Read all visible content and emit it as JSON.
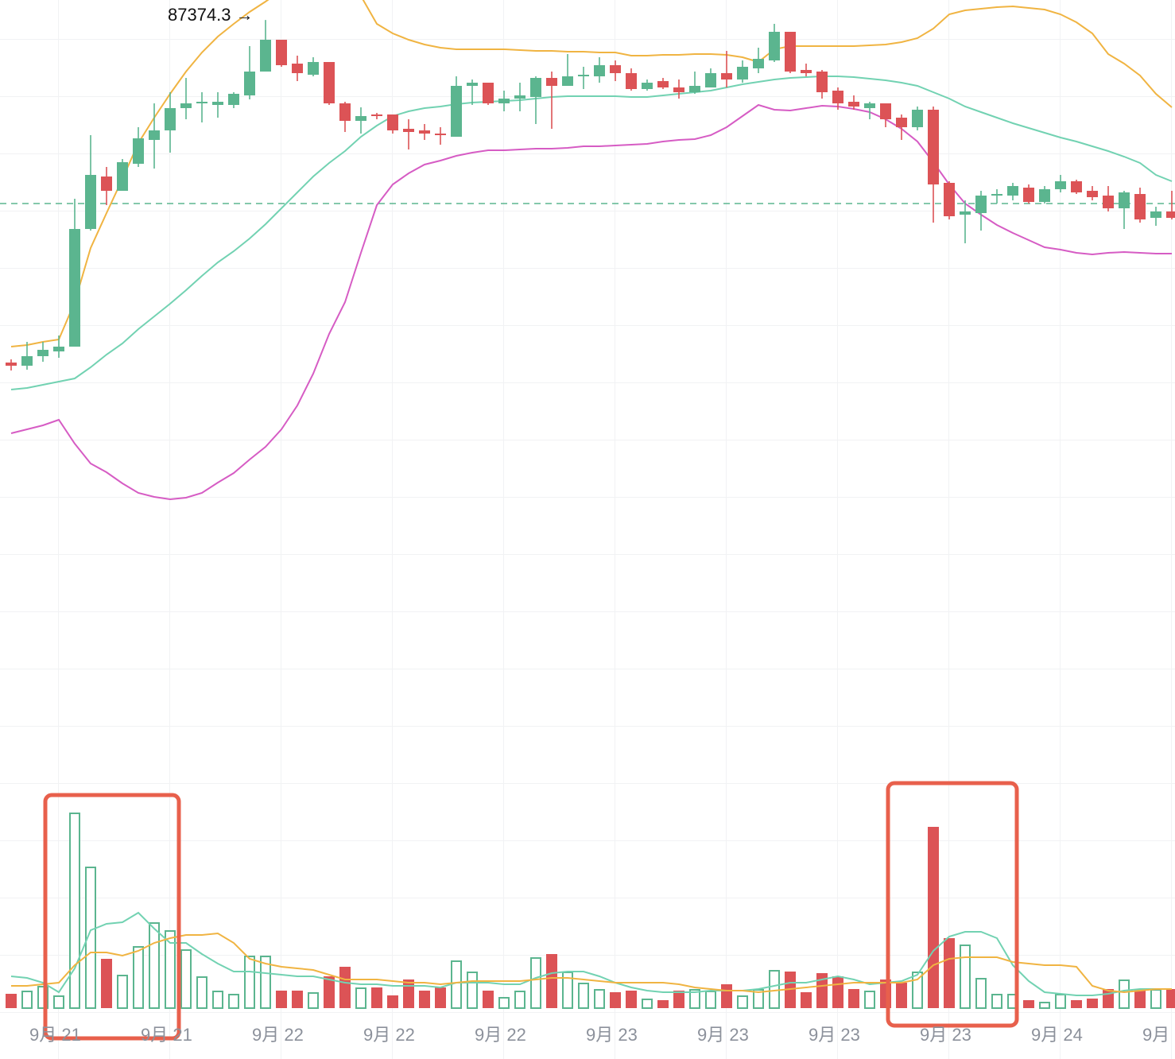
{
  "chart_data": {
    "type": "candlestick",
    "annotation": "87374.3 →",
    "categories": [
      null,
      null,
      null,
      "9月 21",
      null,
      null,
      null,
      null,
      null,
      null,
      "9月 21",
      null,
      null,
      null,
      null,
      null,
      null,
      "9月 22",
      null,
      null,
      null,
      null,
      null,
      null,
      "9月 22",
      null,
      null,
      null,
      null,
      null,
      null,
      "9月 22",
      null,
      null,
      null,
      null,
      null,
      null,
      "9月 23",
      null,
      null,
      null,
      null,
      null,
      null,
      "9月 23",
      null,
      null,
      null,
      null,
      null,
      null,
      "9月 23",
      null,
      null,
      null,
      null,
      null,
      null,
      "9月 23",
      null,
      null,
      null,
      null,
      null,
      null,
      "9月 24",
      null,
      null,
      null,
      null,
      null,
      null,
      "9月"
    ],
    "open": [
      85220,
      85200,
      85260,
      85290,
      85320,
      86060,
      86390,
      86300,
      86470,
      86620,
      86680,
      86820,
      86850,
      86840,
      86840,
      86900,
      87050,
      87250,
      87100,
      87030,
      87110,
      86850,
      86740,
      86780,
      86780,
      86690,
      86680,
      86660,
      86640,
      86960,
      86980,
      86850,
      86880,
      86890,
      87010,
      86960,
      87020,
      87020,
      87090,
      87040,
      86940,
      86990,
      86950,
      86920,
      86950,
      87040,
      87000,
      87070,
      87120,
      87300,
      87060,
      87050,
      86930,
      86860,
      86820,
      86850,
      86760,
      86700,
      86810,
      86350,
      86150,
      86160,
      86270,
      86270,
      86320,
      86230,
      86310,
      86360,
      86300,
      86270,
      86190,
      86280,
      86130,
      86170
    ],
    "high": [
      85240,
      85350,
      85350,
      85390,
      86250,
      86650,
      86450,
      86500,
      86700,
      86850,
      86920,
      87010,
      86920,
      86920,
      86920,
      87210,
      87374.3,
      87250,
      87150,
      87140,
      87110,
      86860,
      86825,
      86790,
      86780,
      86750,
      86720,
      86700,
      87020,
      87000,
      86980,
      86930,
      86980,
      87020,
      87050,
      87160,
      87080,
      87140,
      87120,
      87070,
      87000,
      87010,
      87000,
      87050,
      87070,
      87180,
      87120,
      87200,
      87350,
      87300,
      87100,
      87060,
      86950,
      86900,
      86860,
      86850,
      86780,
      86830,
      86830,
      86360,
      86240,
      86300,
      86310,
      86350,
      86340,
      86330,
      86400,
      86370,
      86330,
      86330,
      86300,
      86320,
      86200,
      86300
    ],
    "low": [
      85170,
      85175,
      85225,
      85250,
      85320,
      86050,
      86210,
      86300,
      86450,
      86440,
      86540,
      86750,
      86730,
      86760,
      86820,
      86875,
      87050,
      87080,
      86990,
      87020,
      86840,
      86670,
      86660,
      86750,
      86660,
      86560,
      86620,
      86590,
      86640,
      86840,
      86840,
      86800,
      86800,
      86720,
      86690,
      86960,
      86940,
      86980,
      86990,
      86930,
      86930,
      86940,
      86880,
      86910,
      86950,
      86950,
      86980,
      87040,
      87110,
      87040,
      87020,
      86880,
      86810,
      86810,
      86750,
      86700,
      86620,
      86680,
      86100,
      86120,
      85970,
      86050,
      86220,
      86240,
      86220,
      86220,
      86290,
      86280,
      86240,
      86170,
      86060,
      86100,
      86080,
      86120
    ],
    "close": [
      85200,
      85260,
      85300,
      85320,
      86060,
      86400,
      86300,
      86480,
      86630,
      86680,
      86820,
      86850,
      86860,
      86860,
      86910,
      87050,
      87250,
      87090,
      87040,
      87110,
      86850,
      86740,
      86770,
      86770,
      86680,
      86670,
      86660,
      86650,
      86960,
      86980,
      86850,
      86880,
      86900,
      87010,
      86960,
      87020,
      87030,
      87090,
      87040,
      86940,
      86980,
      86950,
      86920,
      86960,
      87040,
      87000,
      87080,
      87130,
      87300,
      87050,
      87040,
      86920,
      86850,
      86830,
      86850,
      86750,
      86700,
      86810,
      86340,
      86140,
      86170,
      86270,
      86280,
      86330,
      86230,
      86310,
      86360,
      86290,
      86260,
      86190,
      86290,
      86120,
      86170,
      86130
    ],
    "up_color": "#5bb58f",
    "down_color": "#dc5356",
    "ylim": [
      82500,
      87500
    ],
    "price_line": 86220,
    "overlays": [
      {
        "color": "#f0b442",
        "values": [
          85320,
          85330,
          85350,
          85365,
          85600,
          85940,
          86160,
          86375,
          86600,
          86760,
          86910,
          87050,
          87170,
          87270,
          87350,
          87425,
          87490,
          87560,
          87610,
          87640,
          87650,
          87610,
          87525,
          87350,
          87290,
          87250,
          87220,
          87200,
          87190,
          87190,
          87190,
          87190,
          87185,
          87180,
          87180,
          87175,
          87175,
          87170,
          87170,
          87150,
          87150,
          87155,
          87155,
          87160,
          87160,
          87155,
          87140,
          87110,
          87190,
          87210,
          87210,
          87210,
          87210,
          87210,
          87215,
          87220,
          87235,
          87260,
          87320,
          87410,
          87435,
          87445,
          87455,
          87460,
          87450,
          87440,
          87410,
          87360,
          87290,
          87160,
          87100,
          87025,
          86910,
          86825
        ]
      },
      {
        "color": "#72d2b2",
        "values": [
          85050,
          85060,
          85080,
          85100,
          85120,
          85190,
          85270,
          85340,
          85430,
          85510,
          85590,
          85675,
          85765,
          85850,
          85920,
          86000,
          86090,
          86190,
          86290,
          86390,
          86475,
          86550,
          86640,
          86710,
          86770,
          86800,
          86820,
          86830,
          86845,
          86855,
          86860,
          86865,
          86870,
          86880,
          86890,
          86895,
          86895,
          86895,
          86895,
          86890,
          86890,
          86900,
          86910,
          86920,
          86930,
          86950,
          86970,
          86985,
          87000,
          87010,
          87015,
          87020,
          87020,
          87015,
          87005,
          86995,
          86980,
          86960,
          86920,
          86880,
          86830,
          86795,
          86760,
          86725,
          86695,
          86665,
          86635,
          86610,
          86580,
          86550,
          86515,
          86475,
          86400,
          86360
        ]
      },
      {
        "color": "#d65cc4",
        "values": [
          84775,
          84800,
          84825,
          84860,
          84710,
          84585,
          84530,
          84460,
          84400,
          84375,
          84360,
          84370,
          84400,
          84465,
          84525,
          84610,
          84690,
          84800,
          84950,
          85150,
          85400,
          85600,
          85910,
          86210,
          86340,
          86410,
          86465,
          86490,
          86520,
          86540,
          86555,
          86555,
          86560,
          86565,
          86565,
          86570,
          86580,
          86580,
          86585,
          86590,
          86595,
          86610,
          86620,
          86625,
          86650,
          86700,
          86770,
          86840,
          86810,
          86805,
          86820,
          86835,
          86830,
          86815,
          86795,
          86750,
          86690,
          86610,
          86480,
          86340,
          86220,
          86150,
          86085,
          86035,
          85990,
          85945,
          85930,
          85910,
          85900,
          85910,
          85915,
          85910,
          85905,
          85905
        ]
      }
    ],
    "volume": {
      "ylim": [
        0,
        300
      ],
      "values": [
        18,
        22,
        28,
        16,
        246,
        178,
        62,
        42,
        78,
        108,
        98,
        74,
        40,
        22,
        18,
        66,
        66,
        22,
        22,
        20,
        40,
        52,
        26,
        26,
        16,
        36,
        22,
        26,
        60,
        46,
        22,
        14,
        22,
        64,
        68,
        46,
        32,
        24,
        20,
        22,
        12,
        10,
        22,
        24,
        22,
        30,
        16,
        24,
        48,
        46,
        20,
        44,
        40,
        24,
        22,
        36,
        32,
        46,
        228,
        88,
        80,
        38,
        18,
        18,
        10,
        8,
        18,
        10,
        12,
        24,
        36,
        24,
        24,
        24
      ],
      "ma": [
        {
          "color": "#72d2b2",
          "values": [
            40,
            38,
            32,
            20,
            50,
            98,
            106,
            108,
            120,
            100,
            82,
            82,
            68,
            56,
            46,
            46,
            44,
            42,
            40,
            40,
            36,
            32,
            30,
            30,
            28,
            28,
            28,
            26,
            32,
            32,
            32,
            30,
            30,
            38,
            44,
            46,
            46,
            40,
            32,
            26,
            22,
            20,
            20,
            20,
            22,
            22,
            22,
            24,
            28,
            32,
            32,
            36,
            40,
            36,
            30,
            32,
            34,
            42,
            72,
            90,
            96,
            96,
            88,
            54,
            34,
            20,
            18,
            16,
            16,
            18,
            22,
            24,
            24,
            24
          ]
        },
        {
          "color": "#f0b442",
          "values": [
            28,
            28,
            30,
            32,
            54,
            70,
            70,
            66,
            72,
            82,
            88,
            92,
            92,
            94,
            82,
            62,
            56,
            52,
            50,
            48,
            42,
            36,
            36,
            36,
            34,
            32,
            32,
            30,
            32,
            34,
            34,
            34,
            34,
            36,
            38,
            38,
            36,
            34,
            32,
            32,
            32,
            32,
            30,
            26,
            24,
            22,
            22,
            20,
            22,
            24,
            26,
            28,
            30,
            32,
            32,
            32,
            32,
            36,
            54,
            62,
            64,
            64,
            64,
            58,
            56,
            54,
            54,
            52,
            28,
            22,
            20,
            22,
            24,
            24
          ]
        }
      ]
    }
  }
}
